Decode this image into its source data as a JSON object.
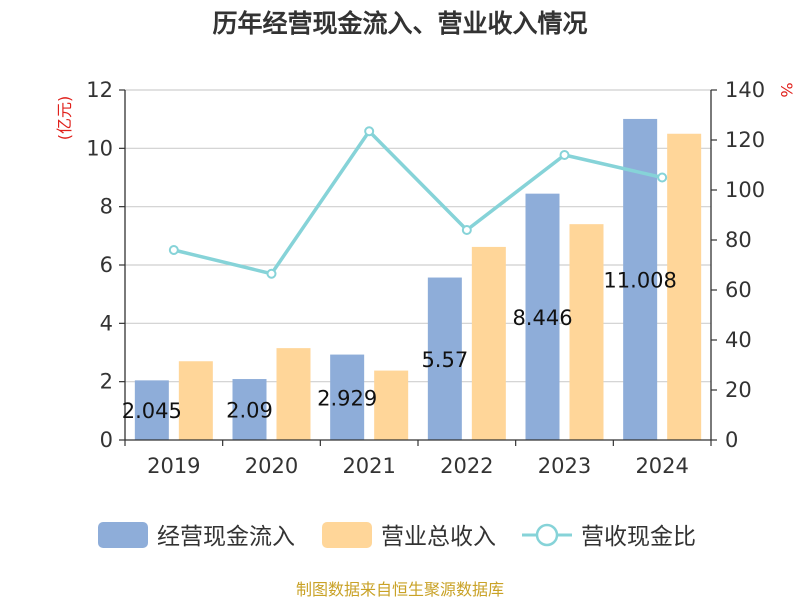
{
  "chart_data": {
    "type": "bar",
    "title": "历年经营现金流入、营业收入情况",
    "categories": [
      "2019",
      "2020",
      "2021",
      "2022",
      "2023",
      "2024"
    ],
    "series": [
      {
        "name": "经营现金流入",
        "type": "bar",
        "axis": "left",
        "color": "#8eadd9",
        "values": [
          2.045,
          2.09,
          2.929,
          5.57,
          8.446,
          11.008
        ],
        "labels": [
          "2.045",
          "2.09",
          "2.929",
          "5.57",
          "8.446",
          "11.008"
        ]
      },
      {
        "name": "营业总收入",
        "type": "bar",
        "axis": "left",
        "color": "#ffd699",
        "values": [
          2.7,
          3.15,
          2.38,
          6.62,
          7.4,
          10.5
        ]
      },
      {
        "name": "营收现金比",
        "type": "line",
        "axis": "right",
        "color": "#86d3d8",
        "values": [
          76,
          66.5,
          123.5,
          84,
          114,
          105
        ]
      }
    ],
    "left_axis": {
      "unit": "(亿元)",
      "ylim": [
        0,
        12
      ],
      "ticks": [
        "0",
        "2",
        "4",
        "6",
        "8",
        "10",
        "12"
      ]
    },
    "right_axis": {
      "unit": "%",
      "ylim": [
        0,
        140
      ],
      "ticks": [
        "0",
        "20",
        "40",
        "60",
        "80",
        "100",
        "120",
        "140"
      ]
    },
    "grid": true,
    "legend": "bottom"
  },
  "footer": {
    "source": "制图数据来自恒生聚源数据库"
  }
}
